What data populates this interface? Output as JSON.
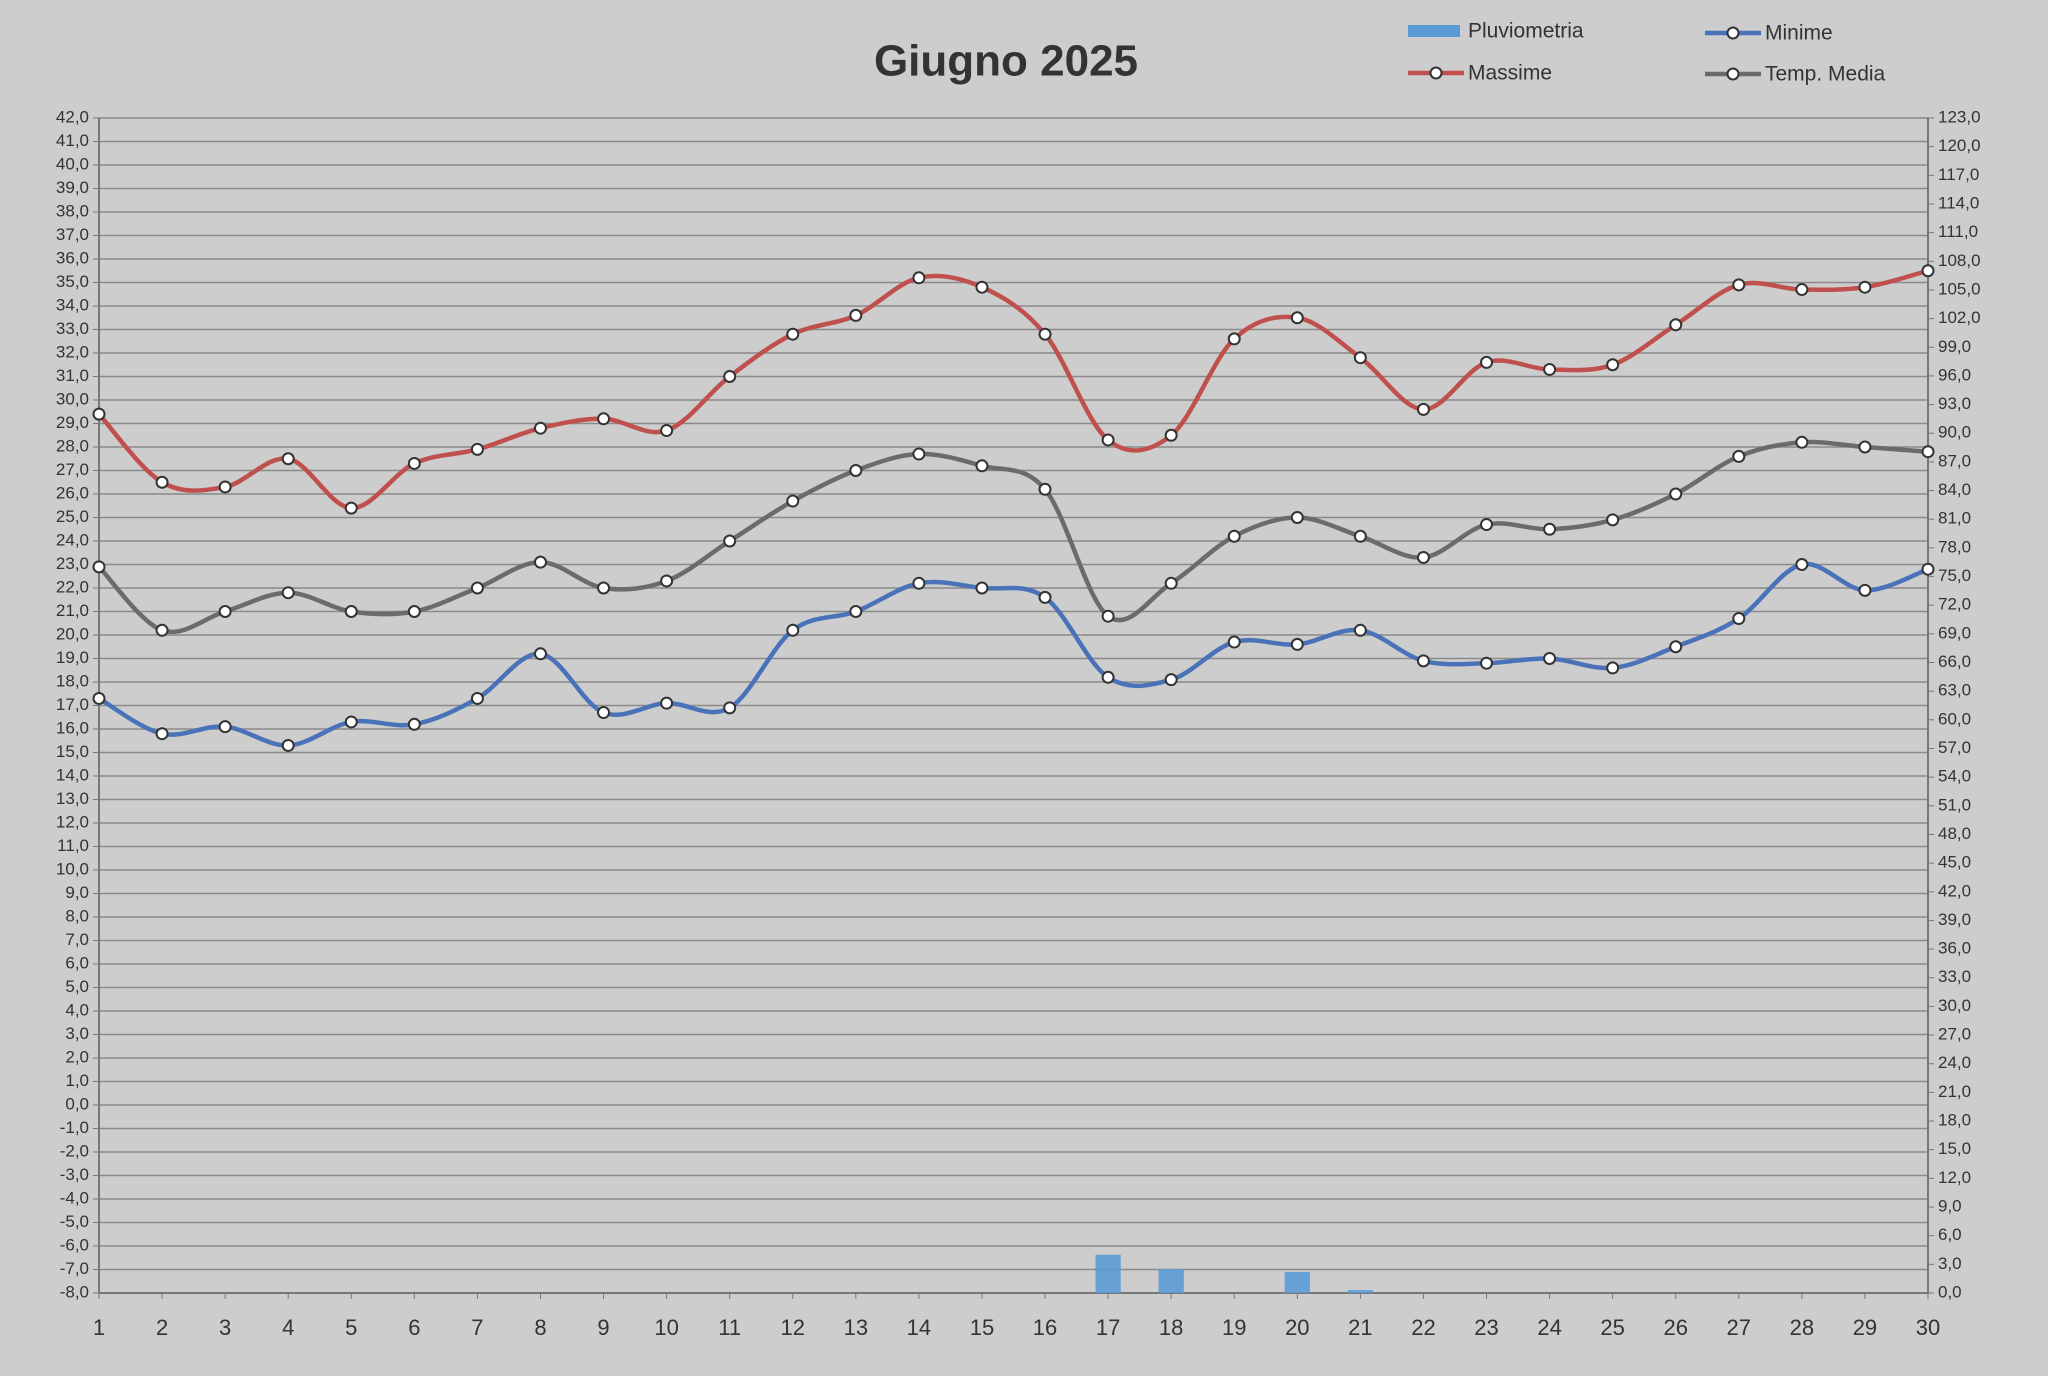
{
  "chart_data": {
    "type": "line",
    "title": "Giugno 2025",
    "categories": [
      "1",
      "2",
      "3",
      "4",
      "5",
      "6",
      "7",
      "8",
      "9",
      "10",
      "11",
      "12",
      "13",
      "14",
      "15",
      "16",
      "17",
      "18",
      "19",
      "20",
      "21",
      "22",
      "23",
      "24",
      "25",
      "26",
      "27",
      "28",
      "29",
      "30"
    ],
    "series": [
      {
        "name": "Pluviometria",
        "type": "bar",
        "axis": "y2",
        "color": "#5b9bd5",
        "values": [
          0,
          0,
          0,
          0,
          0,
          0,
          0,
          0,
          0,
          0,
          0,
          0,
          0,
          0,
          0,
          0,
          4.0,
          2.5,
          0,
          2.2,
          0.3,
          0,
          0,
          0,
          0,
          0,
          0,
          0,
          0,
          0
        ]
      },
      {
        "name": "Minime",
        "type": "line",
        "color": "#4a72b8",
        "values": [
          17.3,
          15.8,
          16.1,
          15.3,
          16.3,
          16.2,
          17.3,
          19.2,
          16.7,
          17.1,
          16.9,
          20.2,
          21.0,
          22.2,
          22.0,
          21.6,
          18.2,
          18.1,
          19.7,
          19.6,
          20.2,
          18.9,
          18.8,
          19.0,
          18.6,
          19.5,
          20.7,
          23.0,
          21.9,
          22.8
        ]
      },
      {
        "name": "Massime",
        "type": "line",
        "color": "#c0504d",
        "values": [
          29.4,
          26.5,
          26.3,
          27.5,
          25.4,
          27.3,
          27.9,
          28.8,
          29.2,
          28.7,
          31.0,
          32.8,
          33.6,
          35.2,
          34.8,
          32.8,
          28.3,
          28.5,
          32.6,
          33.5,
          31.8,
          29.6,
          31.6,
          31.3,
          31.5,
          33.2,
          34.9,
          34.7,
          34.8,
          35.5
        ]
      },
      {
        "name": "Temp. Media",
        "type": "line",
        "color": "#6b6b6b",
        "values": [
          22.9,
          20.2,
          21.0,
          21.8,
          21.0,
          21.0,
          22.0,
          23.1,
          22.0,
          22.3,
          24.0,
          25.7,
          27.0,
          27.7,
          27.2,
          26.2,
          20.8,
          22.2,
          24.2,
          25.0,
          24.2,
          23.3,
          24.7,
          24.5,
          24.9,
          26.0,
          27.6,
          28.2,
          28.0,
          27.8
        ]
      }
    ],
    "ylim": [
      -8,
      42
    ],
    "yticks": [
      {
        "value": -8,
        "label": "-8,0"
      },
      {
        "value": -7,
        "label": "-7,0"
      },
      {
        "value": -6,
        "label": "-6,0"
      },
      {
        "value": -5,
        "label": "-5,0"
      },
      {
        "value": -4,
        "label": "-4,0"
      },
      {
        "value": -3,
        "label": "-3,0"
      },
      {
        "value": -2,
        "label": "-2,0"
      },
      {
        "value": -1,
        "label": "-1,0"
      },
      {
        "value": 0,
        "label": "0,0"
      },
      {
        "value": 1,
        "label": "1,0"
      },
      {
        "value": 2,
        "label": "2,0"
      },
      {
        "value": 3,
        "label": "3,0"
      },
      {
        "value": 4,
        "label": "4,0"
      },
      {
        "value": 5,
        "label": "5,0"
      },
      {
        "value": 6,
        "label": "6,0"
      },
      {
        "value": 7,
        "label": "7,0"
      },
      {
        "value": 8,
        "label": "8,0"
      },
      {
        "value": 9,
        "label": "9,0"
      },
      {
        "value": 10,
        "label": "10,0"
      },
      {
        "value": 11,
        "label": "11,0"
      },
      {
        "value": 12,
        "label": "12,0"
      },
      {
        "value": 13,
        "label": "13,0"
      },
      {
        "value": 14,
        "label": "14,0"
      },
      {
        "value": 15,
        "label": "15,0"
      },
      {
        "value": 16,
        "label": "16,0"
      },
      {
        "value": 17,
        "label": "17,0"
      },
      {
        "value": 18,
        "label": "18,0"
      },
      {
        "value": 19,
        "label": "19,0"
      },
      {
        "value": 20,
        "label": "20,0"
      },
      {
        "value": 21,
        "label": "21,0"
      },
      {
        "value": 22,
        "label": "22,0"
      },
      {
        "value": 23,
        "label": "23,0"
      },
      {
        "value": 24,
        "label": "24,0"
      },
      {
        "value": 25,
        "label": "25,0"
      },
      {
        "value": 26,
        "label": "26,0"
      },
      {
        "value": 27,
        "label": "27,0"
      },
      {
        "value": 28,
        "label": "28,0"
      },
      {
        "value": 29,
        "label": "29,0"
      },
      {
        "value": 30,
        "label": "30,0"
      },
      {
        "value": 31,
        "label": "31,0"
      },
      {
        "value": 32,
        "label": "32,0"
      },
      {
        "value": 33,
        "label": "33,0"
      },
      {
        "value": 34,
        "label": "34,0"
      },
      {
        "value": 35,
        "label": "35,0"
      },
      {
        "value": 36,
        "label": "36,0"
      },
      {
        "value": 37,
        "label": "37,0"
      },
      {
        "value": 38,
        "label": "38,0"
      },
      {
        "value": 39,
        "label": "39,0"
      },
      {
        "value": 40,
        "label": "40,0"
      },
      {
        "value": 41,
        "label": "41,0"
      },
      {
        "value": 42,
        "label": "42,0"
      }
    ],
    "y2lim": [
      0,
      123
    ],
    "y2ticks": [
      {
        "value": 0,
        "label": "0,0"
      },
      {
        "value": 3,
        "label": "3,0"
      },
      {
        "value": 6,
        "label": "6,0"
      },
      {
        "value": 9,
        "label": "9,0"
      },
      {
        "value": 12,
        "label": "12,0"
      },
      {
        "value": 15,
        "label": "15,0"
      },
      {
        "value": 18,
        "label": "18,0"
      },
      {
        "value": 21,
        "label": "21,0"
      },
      {
        "value": 24,
        "label": "24,0"
      },
      {
        "value": 27,
        "label": "27,0"
      },
      {
        "value": 30,
        "label": "30,0"
      },
      {
        "value": 33,
        "label": "33,0"
      },
      {
        "value": 36,
        "label": "36,0"
      },
      {
        "value": 39,
        "label": "39,0"
      },
      {
        "value": 42,
        "label": "42,0"
      },
      {
        "value": 45,
        "label": "45,0"
      },
      {
        "value": 48,
        "label": "48,0"
      },
      {
        "value": 51,
        "label": "51,0"
      },
      {
        "value": 54,
        "label": "54,0"
      },
      {
        "value": 57,
        "label": "57,0"
      },
      {
        "value": 60,
        "label": "60,0"
      },
      {
        "value": 63,
        "label": "63,0"
      },
      {
        "value": 66,
        "label": "66,0"
      },
      {
        "value": 69,
        "label": "69,0"
      },
      {
        "value": 72,
        "label": "72,0"
      },
      {
        "value": 75,
        "label": "75,0"
      },
      {
        "value": 78,
        "label": "78,0"
      },
      {
        "value": 81,
        "label": "81,0"
      },
      {
        "value": 84,
        "label": "84,0"
      },
      {
        "value": 87,
        "label": "87,0"
      },
      {
        "value": 90,
        "label": "90,0"
      },
      {
        "value": 93,
        "label": "93,0"
      },
      {
        "value": 96,
        "label": "96,0"
      },
      {
        "value": 99,
        "label": "99,0"
      },
      {
        "value": 102,
        "label": "102,0"
      },
      {
        "value": 105,
        "label": "105,0"
      },
      {
        "value": 108,
        "label": "108,0"
      },
      {
        "value": 111,
        "label": "111,0"
      },
      {
        "value": 114,
        "label": "114,0"
      },
      {
        "value": 117,
        "label": "117,0"
      },
      {
        "value": 120,
        "label": "120,0"
      },
      {
        "value": 123,
        "label": "123,0"
      }
    ],
    "grid": true,
    "legend": "top-right"
  }
}
